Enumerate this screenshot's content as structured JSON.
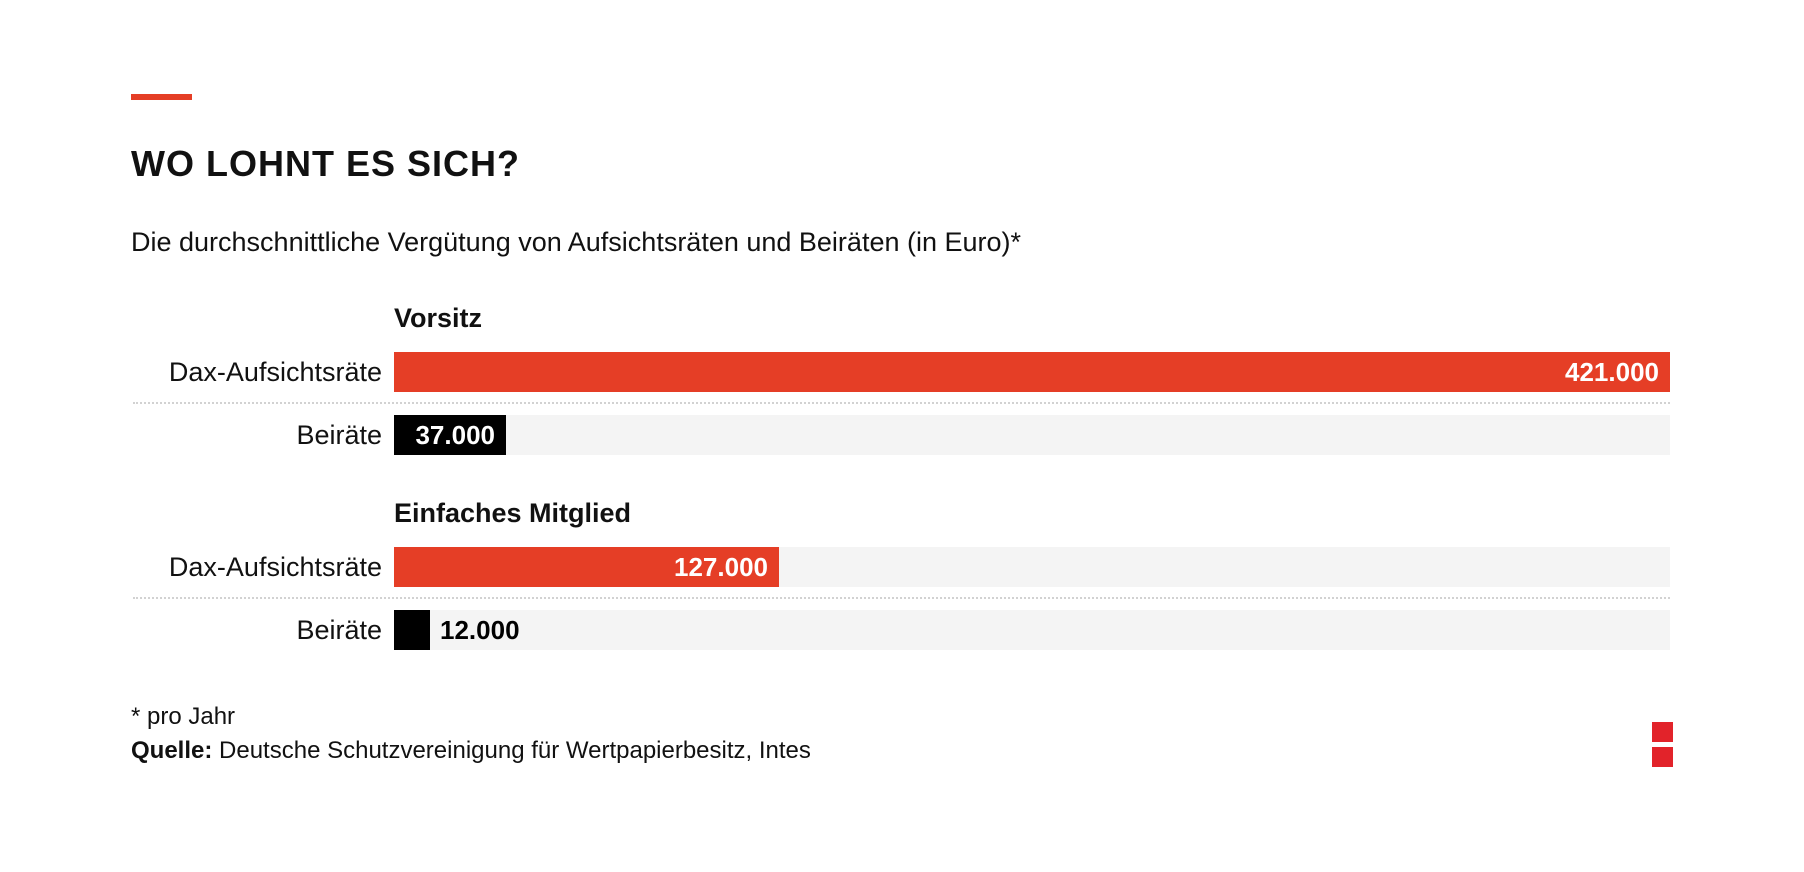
{
  "header": {
    "title": "WO LOHNT ES SICH?",
    "subtitle": "Die durchschnittliche Vergütung von Aufsichtsräten und Beiräten (in Euro)*"
  },
  "colors": {
    "accent": "#e53e26",
    "dax": "#e53e26",
    "beirat": "#000000",
    "track": "#f4f4f4",
    "logo": "#e2232a"
  },
  "chart_data": {
    "type": "bar",
    "orientation": "horizontal",
    "title": "WO LOHNT ES SICH?",
    "subtitle": "Die durchschnittliche Vergütung von Aufsichtsräten und Beiräten (in Euro)*",
    "xlim": [
      0,
      421000
    ],
    "grid": false,
    "legend": "none",
    "groups": [
      {
        "name": "Vorsitz",
        "bars": [
          {
            "category": "Dax-Aufsichtsräte",
            "value": 421000,
            "label": "421.000"
          },
          {
            "category": "Beiräte",
            "value": 37000,
            "label": "37.000"
          }
        ]
      },
      {
        "name": "Einfaches Mitglied",
        "bars": [
          {
            "category": "Dax-Aufsichtsräte",
            "value": 127000,
            "label": "127.000"
          },
          {
            "category": "Beiräte",
            "value": 12000,
            "label": "12.000"
          }
        ]
      }
    ]
  },
  "footer": {
    "footnote": "* pro Jahr",
    "source_label": "Quelle:",
    "source_text": " Deutsche Schutzvereinigung für Wertpapierbesitz, Intes"
  },
  "logo": {
    "icon": "two-red-squares-logo-icon"
  }
}
